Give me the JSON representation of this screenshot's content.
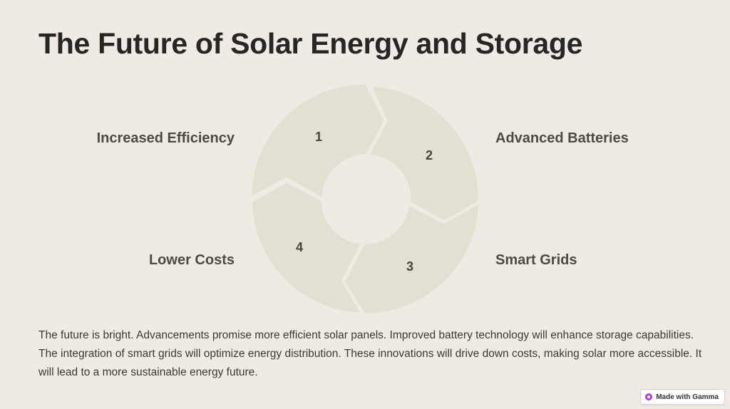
{
  "slide": {
    "title": "The Future of Solar Energy and Storage",
    "steps": [
      {
        "number": "1",
        "label": "Increased Efficiency"
      },
      {
        "number": "2",
        "label": "Advanced Batteries"
      },
      {
        "number": "3",
        "label": "Smart Grids"
      },
      {
        "number": "4",
        "label": "Lower Costs"
      }
    ],
    "body": "The future is bright. Advancements promise more efficient solar panels. Improved battery technology will enhance storage capabilities. The integration of smart grids will optimize energy distribution. These innovations will drive down costs, making solar more accessible. It will lead to a more sustainable energy future."
  },
  "badge": {
    "label": "Made with Gamma",
    "icon": "gamma-logo-icon"
  },
  "colors": {
    "background": "#efebe4",
    "segment": "#e4dfd3",
    "title": "#262622"
  }
}
